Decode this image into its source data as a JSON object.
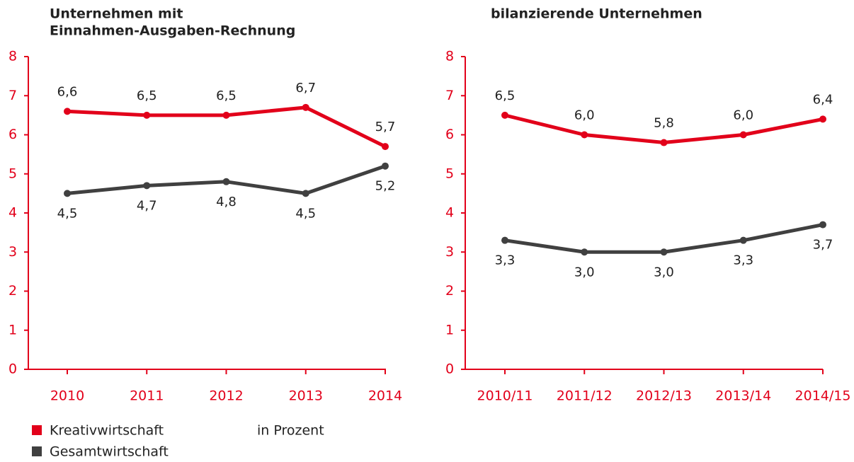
{
  "chart_data": [
    {
      "type": "line",
      "title": [
        "Unternehmen mit",
        "Einnahmen-Ausgaben-Rechnung"
      ],
      "categories": [
        "2010",
        "2011",
        "2012",
        "2013",
        "2014"
      ],
      "series": [
        {
          "name": "Kreativwirtschaft",
          "color": "#e2001a",
          "values": [
            6.6,
            6.5,
            6.5,
            6.7,
            5.7
          ],
          "value_labels": [
            "6,6",
            "6,5",
            "6,5",
            "6,7",
            "5,7"
          ]
        },
        {
          "name": "Gesamtwirtschaft",
          "color": "#404040",
          "values": [
            4.5,
            4.7,
            4.8,
            4.5,
            5.2
          ],
          "value_labels": [
            "4,5",
            "4,7",
            "4,8",
            "4,5",
            "5,2"
          ]
        }
      ],
      "ylim": [
        0,
        8
      ],
      "yticks": [
        0,
        1,
        2,
        3,
        4,
        5,
        6,
        7,
        8
      ]
    },
    {
      "type": "line",
      "title": [
        "bilanzierende Unternehmen"
      ],
      "categories": [
        "2010/11",
        "2011/12",
        "2012/13",
        "2013/14",
        "2014/15"
      ],
      "series": [
        {
          "name": "Kreativwirtschaft",
          "color": "#e2001a",
          "values": [
            6.5,
            6.0,
            5.8,
            6.0,
            6.4
          ],
          "value_labels": [
            "6,5",
            "6,0",
            "5,8",
            "6,0",
            "6,4"
          ]
        },
        {
          "name": "Gesamtwirtschaft",
          "color": "#404040",
          "values": [
            3.3,
            3.0,
            3.0,
            3.3,
            3.7
          ],
          "value_labels": [
            "3,3",
            "3,0",
            "3,0",
            "3,3",
            "3,7"
          ]
        }
      ],
      "ylim": [
        0,
        8
      ],
      "yticks": [
        0,
        1,
        2,
        3,
        4,
        5,
        6,
        7,
        8
      ]
    }
  ],
  "note": "in Prozent"
}
